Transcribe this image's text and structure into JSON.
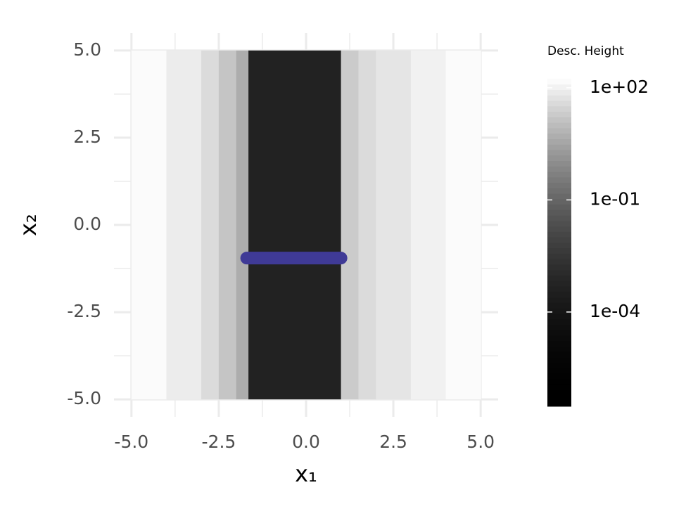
{
  "chart_data": {
    "type": "heatmap",
    "xlabel": "x₁",
    "ylabel": "x₂",
    "xlim": [
      -5.5,
      5.5
    ],
    "ylim": [
      -5.5,
      5.5
    ],
    "xticks": [
      {
        "value": -5,
        "label": "-5.0"
      },
      {
        "value": -2.5,
        "label": "-2.5"
      },
      {
        "value": 0,
        "label": "0.0"
      },
      {
        "value": 2.5,
        "label": "2.5"
      },
      {
        "value": 5,
        "label": "5.0"
      }
    ],
    "yticks": [
      {
        "value": -5,
        "label": "-5.0"
      },
      {
        "value": -2.5,
        "label": "-2.5"
      },
      {
        "value": 0,
        "label": "0.0"
      },
      {
        "value": 2.5,
        "label": "2.5"
      },
      {
        "value": 5,
        "label": "5.0"
      }
    ],
    "xminor_ticks": [
      -3.75,
      -1.25,
      1.25,
      3.75
    ],
    "yminor_ticks": [
      -3.75,
      -1.25,
      1.25,
      3.75
    ],
    "grid": true,
    "x_bins": [
      -5,
      -4,
      -3,
      -2.5,
      -2,
      -1.65,
      1.0,
      1.5,
      2,
      3,
      4,
      5
    ],
    "y_bins": [
      -5,
      5
    ],
    "values": [
      150,
      80,
      40,
      15,
      5,
      0.0005,
      20,
      40,
      60,
      100,
      150
    ],
    "colorbar": {
      "title": "Desc. Height",
      "log_scale": true,
      "lim": [
        3e-07,
        175
      ],
      "ticks": [
        {
          "value": 100,
          "label": "1e+02"
        },
        {
          "value": 0.1,
          "label": "1e-01"
        },
        {
          "value": 0.0001,
          "label": "1e-04"
        }
      ]
    },
    "series": [
      {
        "type": "line",
        "color": "#3f3a96",
        "x": [
          -1.7,
          1.0
        ],
        "values": [
          -0.95,
          -0.95
        ]
      }
    ]
  }
}
